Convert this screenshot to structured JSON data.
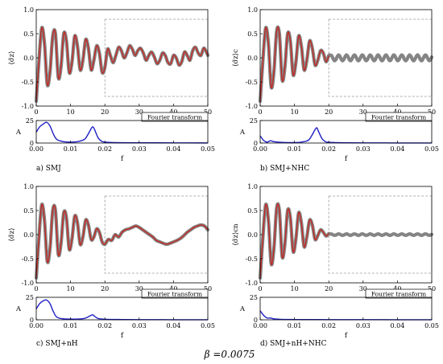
{
  "caption": "β =0.0075",
  "colors": {
    "red": "#c8231e",
    "grey": "#6f6f6f",
    "blue": "#1f1fc6",
    "dash": "#9a9a9a"
  },
  "chart_data": [
    {
      "type": "line",
      "caption": "a) SMJ",
      "ylabel": "⟨σ̃z⟩",
      "fourier_box_label": "Fourier transform",
      "main": {
        "xlim": [
          0,
          50
        ],
        "ylim": [
          -1.0,
          1.0
        ],
        "xticks": [
          0,
          10,
          20,
          30,
          40,
          50
        ],
        "yticks": [
          -1.0,
          -0.5,
          0.0,
          0.5,
          1.0
        ],
        "series": {
          "red_x": [
            0,
            0.8,
            1.6,
            2.4,
            3.2,
            4.0,
            4.8,
            5.6,
            6.4,
            7.2,
            8.0,
            8.8,
            9.6,
            10.4,
            11.2,
            12.0,
            12.8,
            13.6,
            14.4,
            15.2,
            16.0,
            16.8,
            17.6,
            18.4,
            19.2,
            20.0,
            20.8,
            21.6,
            22.4,
            23.2,
            24.0,
            24.8,
            25.6,
            26.4,
            27.2,
            28.0,
            28.8,
            29.6,
            30.4,
            31.2,
            32.0,
            32.8,
            33.6,
            34.4,
            35.2,
            36.0,
            36.8,
            37.6,
            38.4,
            39.2,
            40.0,
            40.8,
            41.6,
            42.4,
            43.2,
            44.0,
            44.8,
            45.6,
            46.4,
            47.2,
            48.0,
            48.8,
            49.6,
            50.0
          ],
          "red_y": [
            -0.9,
            -0.05,
            0.62,
            0.3,
            -0.55,
            -0.3,
            0.45,
            0.5,
            -0.4,
            -0.2,
            0.5,
            0.35,
            -0.3,
            -0.1,
            0.45,
            0.25,
            -0.25,
            -0.05,
            0.38,
            0.2,
            -0.25,
            -0.05,
            0.25,
            0.1,
            -0.3,
            -0.2,
            0.18,
            0.05,
            -0.1,
            0.05,
            0.22,
            0.15,
            0.0,
            0.1,
            0.25,
            0.18,
            0.05,
            0.15,
            0.2,
            0.1,
            -0.05,
            0.05,
            0.12,
            0.02,
            -0.12,
            -0.05,
            0.1,
            0.05,
            -0.1,
            -0.12,
            0.05,
            0.0,
            -0.15,
            -0.08,
            0.12,
            0.05,
            -0.05,
            0.15,
            0.22,
            0.1,
            0.05,
            0.2,
            0.12,
            0.05
          ],
          "grey_band": 0.035,
          "dashed_box": {
            "x": [
              20,
              50
            ],
            "y": [
              -0.8,
              0.8
            ]
          }
        }
      },
      "fourier": {
        "xlim": [
          0,
          0.05
        ],
        "ylim": [
          0,
          25
        ],
        "xticks": [
          0,
          0.01,
          0.02,
          0.03,
          0.04,
          0.05
        ],
        "yticks": [
          0,
          25
        ],
        "xlabel": "f",
        "ylabel": "A",
        "f": [
          0,
          0.001,
          0.002,
          0.003,
          0.004,
          0.005,
          0.006,
          0.008,
          0.01,
          0.012,
          0.014,
          0.015,
          0.016,
          0.0165,
          0.017,
          0.018,
          0.019,
          0.02,
          0.022,
          0.025,
          0.03,
          0.04,
          0.05
        ],
        "A": [
          12,
          18,
          21,
          23,
          19,
          10,
          4,
          1.5,
          1,
          1.5,
          4,
          9,
          16,
          18,
          15,
          6,
          2,
          1,
          0.6,
          0.4,
          0.3,
          0.2,
          0.1
        ]
      }
    },
    {
      "type": "line",
      "caption": "b) SMJ+NHC",
      "ylabel": "⟨σ̃z⟩c",
      "fourier_box_label": "Fourier transform",
      "main": {
        "xlim": [
          0,
          50
        ],
        "ylim": [
          -1.0,
          1.0
        ],
        "xticks": [
          0,
          10,
          20,
          30,
          40,
          50
        ],
        "yticks": [
          -1.0,
          -0.5,
          0.0,
          0.5,
          1.0
        ],
        "series": {
          "red_x": [
            0,
            0.8,
            1.6,
            2.4,
            3.2,
            4.0,
            4.8,
            5.6,
            6.4,
            7.2,
            8.0,
            8.8,
            9.6,
            10.4,
            11.2,
            12.0,
            12.8,
            13.6,
            14.4,
            15.2,
            16.0,
            16.8,
            17.6,
            18.4,
            19.2,
            20.0
          ],
          "red_y": [
            -0.9,
            -0.05,
            0.62,
            0.3,
            -0.6,
            -0.3,
            0.55,
            0.5,
            -0.45,
            -0.2,
            0.5,
            0.35,
            -0.35,
            -0.1,
            0.45,
            0.25,
            -0.25,
            -0.05,
            0.35,
            0.2,
            -0.15,
            -0.05,
            0.15,
            0.1,
            -0.08,
            0.05
          ],
          "grey_tail": {
            "x_start": 20,
            "x_end": 50,
            "center": 0.0,
            "amp": 0.06,
            "period": 2.3
          },
          "grey_band": 0.04,
          "dashed_box": {
            "x": [
              20,
              50
            ],
            "y": [
              -0.8,
              0.8
            ]
          }
        }
      },
      "fourier": {
        "xlim": [
          0,
          0.05
        ],
        "ylim": [
          0,
          25
        ],
        "xticks": [
          0,
          0.01,
          0.02,
          0.03,
          0.04,
          0.05
        ],
        "yticks": [
          0,
          25
        ],
        "xlabel": "f",
        "ylabel": "A",
        "f": [
          0,
          0.001,
          0.002,
          0.003,
          0.004,
          0.006,
          0.008,
          0.01,
          0.012,
          0.014,
          0.015,
          0.016,
          0.0165,
          0.017,
          0.018,
          0.019,
          0.02,
          0.022,
          0.025,
          0.03,
          0.04,
          0.05
        ],
        "A": [
          8,
          3,
          1,
          2.5,
          1.5,
          0.8,
          0.5,
          0.5,
          1,
          3,
          8,
          15,
          17,
          13,
          5,
          1.5,
          0.8,
          0.5,
          0.3,
          0.2,
          0.1,
          0.1
        ]
      }
    },
    {
      "type": "line",
      "caption": "c) SMJ+nH",
      "ylabel": "⟨σ̃z⟩",
      "fourier_box_label": "Fourier transform",
      "main": {
        "xlim": [
          0,
          50
        ],
        "ylim": [
          -1.0,
          1.0
        ],
        "xticks": [
          0,
          10,
          20,
          30,
          40,
          50
        ],
        "yticks": [
          -1.0,
          -0.5,
          0.0,
          0.5,
          1.0
        ],
        "series": {
          "red_x": [
            0,
            0.8,
            1.6,
            2.4,
            3.2,
            4.0,
            4.8,
            5.6,
            6.4,
            7.2,
            8.0,
            8.8,
            9.6,
            10.4,
            11.2,
            12.0,
            12.8,
            13.6,
            14.4,
            15.2,
            16.0,
            16.8,
            17.6,
            18.4,
            19.2,
            20.0,
            21.0,
            22.0,
            23.0,
            24.0,
            25.0,
            26.0,
            27.0,
            28.0,
            29.0,
            30.0,
            31.0,
            32.0,
            33.0,
            34.0,
            35.0,
            36.0,
            37.0,
            38.0,
            39.0,
            40.0,
            41.0,
            42.0,
            43.0,
            44.0,
            45.0,
            46.0,
            47.0,
            48.0,
            49.0,
            50.0
          ],
          "red_y": [
            -0.9,
            -0.05,
            0.62,
            0.3,
            -0.55,
            -0.3,
            0.5,
            0.5,
            -0.4,
            -0.2,
            0.45,
            0.35,
            -0.3,
            -0.1,
            0.38,
            0.25,
            -0.2,
            -0.05,
            0.3,
            0.2,
            -0.1,
            -0.05,
            0.12,
            0.05,
            -0.15,
            -0.2,
            -0.1,
            -0.12,
            0.0,
            -0.05,
            0.05,
            0.1,
            0.12,
            0.15,
            0.18,
            0.15,
            0.1,
            0.05,
            0.0,
            -0.05,
            -0.12,
            -0.15,
            -0.18,
            -0.2,
            -0.18,
            -0.15,
            -0.12,
            -0.08,
            -0.02,
            0.05,
            0.1,
            0.15,
            0.18,
            0.2,
            0.18,
            0.1
          ],
          "grey_band": 0.04,
          "dashed_box": {
            "x": [
              20,
              50
            ],
            "y": [
              -0.8,
              0.8
            ]
          }
        }
      },
      "fourier": {
        "xlim": [
          0,
          0.05
        ],
        "ylim": [
          0,
          25
        ],
        "xticks": [
          0,
          0.01,
          0.02,
          0.03,
          0.04,
          0.05
        ],
        "yticks": [
          0,
          25
        ],
        "xlabel": "f",
        "ylabel": "A",
        "f": [
          0,
          0.001,
          0.002,
          0.003,
          0.004,
          0.005,
          0.006,
          0.008,
          0.01,
          0.012,
          0.014,
          0.015,
          0.016,
          0.0165,
          0.017,
          0.018,
          0.02,
          0.025,
          0.03,
          0.04,
          0.05
        ],
        "A": [
          12,
          18,
          21,
          22,
          18,
          9,
          3,
          1,
          0.8,
          0.8,
          1.5,
          3,
          5,
          5.5,
          4,
          1.5,
          0.6,
          0.3,
          0.2,
          0.1,
          0.1
        ]
      }
    },
    {
      "type": "line",
      "caption": "d) SMJ+nH+NHC",
      "ylabel": "⟨σ̃z⟩cn",
      "fourier_box_label": "Fourier transform",
      "main": {
        "xlim": [
          0,
          50
        ],
        "ylim": [
          -1.0,
          1.0
        ],
        "xticks": [
          0,
          10,
          20,
          30,
          40,
          50
        ],
        "yticks": [
          -1.0,
          -0.5,
          0.0,
          0.5,
          1.0
        ],
        "series": {
          "red_x": [
            0,
            0.8,
            1.6,
            2.4,
            3.2,
            4.0,
            4.8,
            5.6,
            6.4,
            7.2,
            8.0,
            8.8,
            9.6,
            10.4,
            11.2,
            12.0,
            12.8,
            13.6,
            14.4,
            15.2,
            16.0,
            16.8,
            17.6,
            18.4,
            19.2,
            20.0
          ],
          "red_y": [
            -0.9,
            -0.05,
            0.62,
            0.3,
            -0.6,
            -0.3,
            0.55,
            0.5,
            -0.45,
            -0.2,
            0.5,
            0.35,
            -0.35,
            -0.1,
            0.45,
            0.25,
            -0.25,
            -0.05,
            0.3,
            0.2,
            -0.1,
            -0.02,
            0.1,
            0.05,
            -0.03,
            0.02
          ],
          "grey_tail": {
            "x_start": 20,
            "x_end": 50,
            "center": 0.0,
            "amp": 0.015,
            "period": 2.3
          },
          "grey_band": 0.03,
          "dashed_box": {
            "x": [
              20,
              50
            ],
            "y": [
              -0.8,
              0.8
            ]
          }
        }
      },
      "fourier": {
        "xlim": [
          0,
          0.05
        ],
        "ylim": [
          0,
          25
        ],
        "xticks": [
          0,
          0.01,
          0.02,
          0.03,
          0.04,
          0.05
        ],
        "yticks": [
          0,
          25
        ],
        "xlabel": "f",
        "ylabel": "A",
        "f": [
          0,
          0.001,
          0.002,
          0.003,
          0.004,
          0.006,
          0.008,
          0.01,
          0.015,
          0.02,
          0.03,
          0.04,
          0.05
        ],
        "A": [
          10,
          5,
          2,
          2,
          1,
          0.5,
          0.4,
          0.3,
          0.3,
          0.2,
          0.2,
          0.1,
          0.1
        ]
      }
    }
  ]
}
